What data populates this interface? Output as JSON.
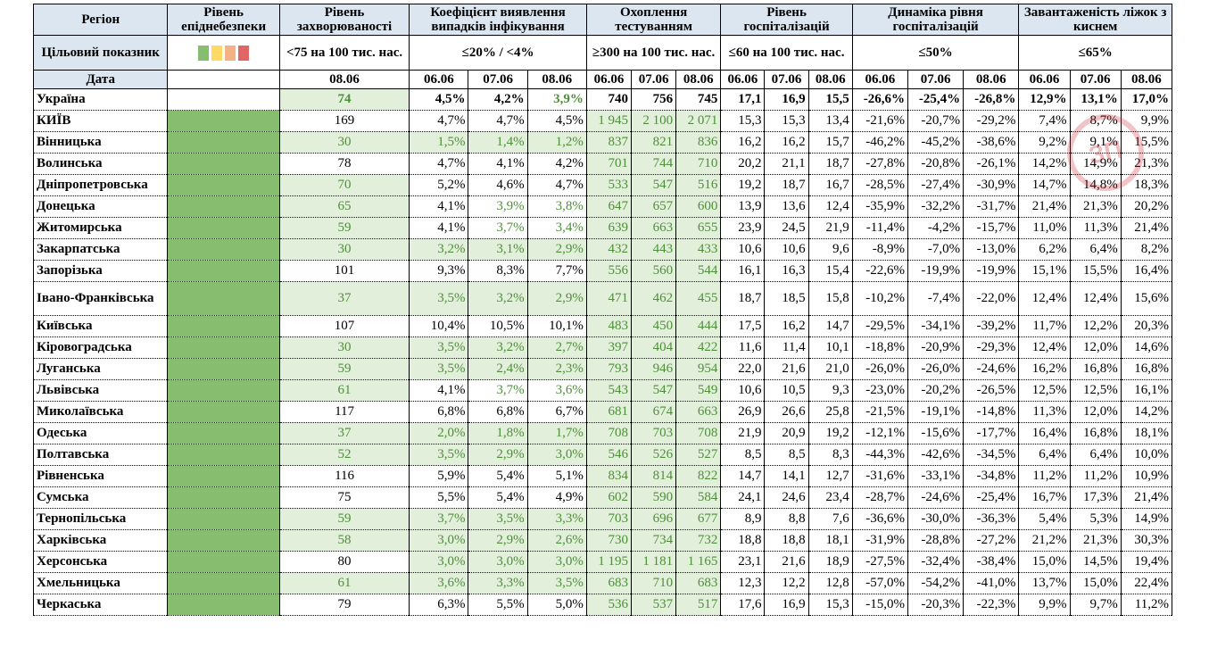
{
  "columns": {
    "region": "Регіон",
    "level": "Рівень епіднебезпеки",
    "incidence": "Рівень захворюваності",
    "positivity": "Коефіцієнт виявлення випадків інфікування",
    "testing": "Охоплення тестуванням",
    "hosp": "Рівень госпіталізацій",
    "hosp_dyn": "Динаміка рівня госпіталізацій",
    "oxygen": "Завантаженість ліжок з киснем"
  },
  "targets": {
    "label": "Цільовий показник",
    "incidence": "<75 на 100 тис. нас.",
    "positivity": "≤20% / <4%",
    "testing": "≥300 на 100 тис. нас.",
    "hosp": "≤60 на 100 тис. нас.",
    "hosp_dyn": "≤50%",
    "oxygen": "≤65%"
  },
  "legend_colors": [
    "#86bd6e",
    "#ffd966",
    "#f4b183",
    "#e06666"
  ],
  "dates": {
    "label": "Дата",
    "incidence": "08.06",
    "three": [
      "06.06",
      "07.06",
      "08.06"
    ]
  },
  "colors": {
    "level_green": "#86bd6e",
    "ok_fill": "#e2efda",
    "ok_text": "#4e8f3a"
  },
  "watermark": "ЗП",
  "rows": [
    {
      "name": "Україна",
      "inc": "74",
      "pos": [
        "4,5%",
        "4,2%",
        "3,9%"
      ],
      "test": [
        "740",
        "756",
        "745"
      ],
      "hosp": [
        "17,1",
        "16,9",
        "15,5"
      ],
      "dyn": [
        "-26,6%",
        "-25,4%",
        "-26,8%"
      ],
      "oxy": [
        "12,9%",
        "13,1%",
        "17,0%"
      ]
    },
    {
      "name": "КИЇВ",
      "inc": "169",
      "pos": [
        "4,7%",
        "4,7%",
        "4,5%"
      ],
      "test": [
        "1 945",
        "2 100",
        "2 071"
      ],
      "hosp": [
        "15,3",
        "15,3",
        "13,4"
      ],
      "dyn": [
        "-21,6%",
        "-20,7%",
        "-29,2%"
      ],
      "oxy": [
        "7,4%",
        "8,7%",
        "9,9%"
      ]
    },
    {
      "name": "Вінницька",
      "inc": "30",
      "pos": [
        "1,5%",
        "1,4%",
        "1,2%"
      ],
      "test": [
        "837",
        "821",
        "836"
      ],
      "hosp": [
        "16,2",
        "16,2",
        "15,7"
      ],
      "dyn": [
        "-46,2%",
        "-45,2%",
        "-38,6%"
      ],
      "oxy": [
        "9,2%",
        "9,1%",
        "15,5%"
      ]
    },
    {
      "name": "Волинська",
      "inc": "78",
      "pos": [
        "4,7%",
        "4,1%",
        "4,2%"
      ],
      "test": [
        "701",
        "744",
        "710"
      ],
      "hosp": [
        "20,2",
        "21,1",
        "18,7"
      ],
      "dyn": [
        "-27,8%",
        "-20,8%",
        "-26,1%"
      ],
      "oxy": [
        "14,2%",
        "14,9%",
        "21,3%"
      ]
    },
    {
      "name": "Дніпропетровська",
      "inc": "70",
      "pos": [
        "5,2%",
        "4,6%",
        "4,7%"
      ],
      "test": [
        "533",
        "547",
        "516"
      ],
      "hosp": [
        "19,2",
        "18,7",
        "16,7"
      ],
      "dyn": [
        "-28,5%",
        "-27,4%",
        "-30,9%"
      ],
      "oxy": [
        "14,7%",
        "14,8%",
        "18,3%"
      ]
    },
    {
      "name": "Донецька",
      "inc": "65",
      "pos": [
        "4,1%",
        "3,9%",
        "3,8%"
      ],
      "test": [
        "647",
        "657",
        "600"
      ],
      "hosp": [
        "13,9",
        "13,6",
        "12,4"
      ],
      "dyn": [
        "-35,9%",
        "-32,2%",
        "-31,7%"
      ],
      "oxy": [
        "21,4%",
        "21,3%",
        "20,2%"
      ]
    },
    {
      "name": "Житомирська",
      "inc": "59",
      "pos": [
        "4,1%",
        "3,7%",
        "3,4%"
      ],
      "test": [
        "639",
        "663",
        "655"
      ],
      "hosp": [
        "23,9",
        "24,5",
        "21,9"
      ],
      "dyn": [
        "-11,4%",
        "-4,2%",
        "-15,7%"
      ],
      "oxy": [
        "11,0%",
        "11,3%",
        "21,4%"
      ]
    },
    {
      "name": "Закарпатська",
      "inc": "30",
      "pos": [
        "3,2%",
        "3,1%",
        "2,9%"
      ],
      "test": [
        "432",
        "443",
        "433"
      ],
      "hosp": [
        "10,6",
        "10,6",
        "9,6"
      ],
      "dyn": [
        "-8,9%",
        "-7,0%",
        "-13,0%"
      ],
      "oxy": [
        "6,2%",
        "6,4%",
        "8,2%"
      ]
    },
    {
      "name": "Запорізька",
      "inc": "101",
      "pos": [
        "9,3%",
        "8,3%",
        "7,7%"
      ],
      "test": [
        "556",
        "560",
        "544"
      ],
      "hosp": [
        "16,1",
        "16,3",
        "15,4"
      ],
      "dyn": [
        "-22,6%",
        "-19,9%",
        "-19,9%"
      ],
      "oxy": [
        "15,1%",
        "15,5%",
        "16,4%"
      ]
    },
    {
      "name": "Івано-Франківська",
      "inc": "37",
      "pos": [
        "3,5%",
        "3,2%",
        "2,9%"
      ],
      "test": [
        "471",
        "462",
        "455"
      ],
      "hosp": [
        "18,7",
        "18,5",
        "15,8"
      ],
      "dyn": [
        "-10,2%",
        "-7,4%",
        "-22,0%"
      ],
      "oxy": [
        "12,4%",
        "12,4%",
        "15,6%"
      ]
    },
    {
      "name": "Київська",
      "inc": "107",
      "pos": [
        "10,4%",
        "10,5%",
        "10,1%"
      ],
      "test": [
        "483",
        "450",
        "444"
      ],
      "hosp": [
        "17,5",
        "16,2",
        "14,7"
      ],
      "dyn": [
        "-29,5%",
        "-34,1%",
        "-39,2%"
      ],
      "oxy": [
        "11,7%",
        "12,2%",
        "20,3%"
      ]
    },
    {
      "name": "Кіровоградська",
      "inc": "30",
      "pos": [
        "3,5%",
        "3,2%",
        "2,7%"
      ],
      "test": [
        "397",
        "404",
        "422"
      ],
      "hosp": [
        "11,6",
        "11,4",
        "10,1"
      ],
      "dyn": [
        "-18,8%",
        "-20,9%",
        "-29,3%"
      ],
      "oxy": [
        "12,4%",
        "12,0%",
        "14,6%"
      ]
    },
    {
      "name": "Луганська",
      "inc": "59",
      "pos": [
        "3,5%",
        "2,4%",
        "2,3%"
      ],
      "test": [
        "793",
        "946",
        "954"
      ],
      "hosp": [
        "22,0",
        "21,6",
        "21,0"
      ],
      "dyn": [
        "-26,0%",
        "-26,0%",
        "-24,6%"
      ],
      "oxy": [
        "16,2%",
        "16,8%",
        "16,8%"
      ]
    },
    {
      "name": "Львівська",
      "inc": "61",
      "pos": [
        "4,1%",
        "3,7%",
        "3,6%"
      ],
      "test": [
        "543",
        "547",
        "549"
      ],
      "hosp": [
        "10,6",
        "10,5",
        "9,3"
      ],
      "dyn": [
        "-23,0%",
        "-20,2%",
        "-26,5%"
      ],
      "oxy": [
        "12,5%",
        "12,5%",
        "16,1%"
      ]
    },
    {
      "name": "Миколаївська",
      "inc": "117",
      "pos": [
        "6,8%",
        "6,8%",
        "6,7%"
      ],
      "test": [
        "681",
        "674",
        "663"
      ],
      "hosp": [
        "26,9",
        "26,6",
        "25,8"
      ],
      "dyn": [
        "-21,5%",
        "-19,1%",
        "-14,8%"
      ],
      "oxy": [
        "11,3%",
        "12,0%",
        "14,2%"
      ]
    },
    {
      "name": "Одеська",
      "inc": "37",
      "pos": [
        "2,0%",
        "1,8%",
        "1,7%"
      ],
      "test": [
        "708",
        "703",
        "708"
      ],
      "hosp": [
        "21,9",
        "20,9",
        "19,2"
      ],
      "dyn": [
        "-12,1%",
        "-15,6%",
        "-17,7%"
      ],
      "oxy": [
        "16,4%",
        "16,8%",
        "18,1%"
      ]
    },
    {
      "name": "Полтавська",
      "inc": "52",
      "pos": [
        "3,5%",
        "2,9%",
        "3,0%"
      ],
      "test": [
        "546",
        "526",
        "527"
      ],
      "hosp": [
        "8,5",
        "8,5",
        "8,3"
      ],
      "dyn": [
        "-44,3%",
        "-42,6%",
        "-34,5%"
      ],
      "oxy": [
        "6,4%",
        "6,4%",
        "10,0%"
      ]
    },
    {
      "name": "Рівненська",
      "inc": "116",
      "pos": [
        "5,9%",
        "5,4%",
        "5,1%"
      ],
      "test": [
        "834",
        "814",
        "822"
      ],
      "hosp": [
        "14,7",
        "14,1",
        "12,7"
      ],
      "dyn": [
        "-31,6%",
        "-33,1%",
        "-34,8%"
      ],
      "oxy": [
        "11,2%",
        "11,2%",
        "10,9%"
      ]
    },
    {
      "name": "Сумська",
      "inc": "75",
      "pos": [
        "5,5%",
        "5,4%",
        "4,9%"
      ],
      "test": [
        "602",
        "590",
        "584"
      ],
      "hosp": [
        "24,1",
        "24,6",
        "23,4"
      ],
      "dyn": [
        "-28,7%",
        "-24,6%",
        "-25,4%"
      ],
      "oxy": [
        "16,7%",
        "17,3%",
        "21,4%"
      ]
    },
    {
      "name": "Тернопільська",
      "inc": "59",
      "pos": [
        "3,7%",
        "3,5%",
        "3,3%"
      ],
      "test": [
        "703",
        "696",
        "677"
      ],
      "hosp": [
        "8,9",
        "8,8",
        "7,6"
      ],
      "dyn": [
        "-36,6%",
        "-30,0%",
        "-36,3%"
      ],
      "oxy": [
        "5,4%",
        "5,3%",
        "14,9%"
      ]
    },
    {
      "name": "Харківська",
      "inc": "58",
      "pos": [
        "3,0%",
        "2,9%",
        "2,6%"
      ],
      "test": [
        "730",
        "734",
        "732"
      ],
      "hosp": [
        "18,8",
        "18,8",
        "18,1"
      ],
      "dyn": [
        "-31,9%",
        "-28,8%",
        "-27,2%"
      ],
      "oxy": [
        "21,2%",
        "21,3%",
        "30,3%"
      ]
    },
    {
      "name": "Херсонська",
      "inc": "80",
      "pos": [
        "3,0%",
        "3,0%",
        "3,0%"
      ],
      "test": [
        "1 195",
        "1 181",
        "1 165"
      ],
      "hosp": [
        "23,1",
        "21,6",
        "18,9"
      ],
      "dyn": [
        "-27,5%",
        "-32,4%",
        "-38,4%"
      ],
      "oxy": [
        "15,0%",
        "14,5%",
        "19,4%"
      ]
    },
    {
      "name": "Хмельницька",
      "inc": "61",
      "pos": [
        "3,6%",
        "3,3%",
        "3,5%"
      ],
      "test": [
        "683",
        "710",
        "683"
      ],
      "hosp": [
        "12,3",
        "12,2",
        "12,8"
      ],
      "dyn": [
        "-57,0%",
        "-54,2%",
        "-41,0%"
      ],
      "oxy": [
        "13,7%",
        "15,0%",
        "22,4%"
      ]
    },
    {
      "name": "Черкаська",
      "inc": "79",
      "pos": [
        "6,3%",
        "5,5%",
        "5,0%"
      ],
      "test": [
        "536",
        "537",
        "517"
      ],
      "hosp": [
        "17,6",
        "16,9",
        "15,3"
      ],
      "dyn": [
        "-15,0%",
        "-20,3%",
        "-22,3%"
      ],
      "oxy": [
        "9,9%",
        "9,7%",
        "11,2%"
      ]
    }
  ]
}
